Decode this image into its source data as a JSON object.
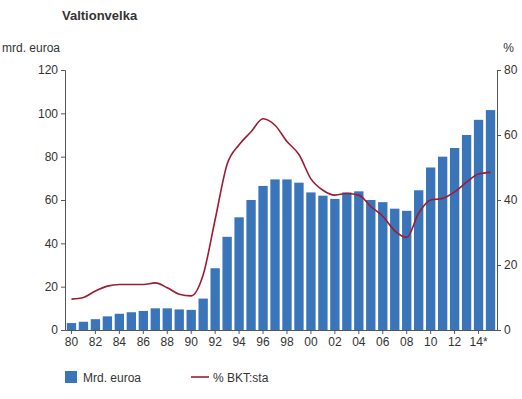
{
  "chart_data": {
    "type": "bar",
    "title": "Valtionvelka",
    "y_label": "mrd. euroa",
    "y2_label": "%",
    "categories": [
      "80",
      null,
      "82",
      null,
      "84",
      null,
      "86",
      null,
      "88",
      null,
      "90",
      null,
      "92",
      null,
      "94",
      null,
      "96",
      null,
      "98",
      null,
      "00",
      null,
      "02",
      null,
      "04",
      null,
      "06",
      null,
      "08",
      null,
      "10",
      null,
      "12",
      null,
      "14*",
      null
    ],
    "series": [
      {
        "name": "Mrd. euroa",
        "type": "bar",
        "color": "#3a75ba",
        "values": [
          3.2,
          3.8,
          5,
          6.3,
          7.5,
          8.2,
          8.8,
          10,
          10,
          9.5,
          9.3,
          14.5,
          28.5,
          43,
          52,
          60,
          66.5,
          69.5,
          69.5,
          68,
          63.5,
          62,
          60.5,
          63.5,
          64,
          60,
          59,
          56,
          55,
          64.5,
          75,
          80,
          84,
          90,
          97,
          101.5
        ]
      },
      {
        "name": "% BKT:sta",
        "type": "line",
        "color": "#9e1b32",
        "axis": "y2",
        "values": [
          9.5,
          10,
          12,
          13.5,
          14,
          14,
          14,
          14.5,
          13,
          11,
          10.5,
          17,
          34,
          51,
          57,
          61,
          65,
          63,
          58,
          54,
          46.5,
          43,
          41.5,
          42,
          41.5,
          38,
          35,
          30.5,
          28.5,
          36,
          40,
          40.5,
          42.5,
          45.5,
          48,
          48.5
        ]
      }
    ],
    "ylim": [
      0,
      120
    ],
    "yticks": [
      0,
      20,
      40,
      60,
      80,
      100,
      120
    ],
    "y2lim": [
      0,
      80
    ],
    "y2ticks": [
      0,
      20,
      40,
      60,
      80
    ],
    "legend": "bottom",
    "grid": false
  }
}
